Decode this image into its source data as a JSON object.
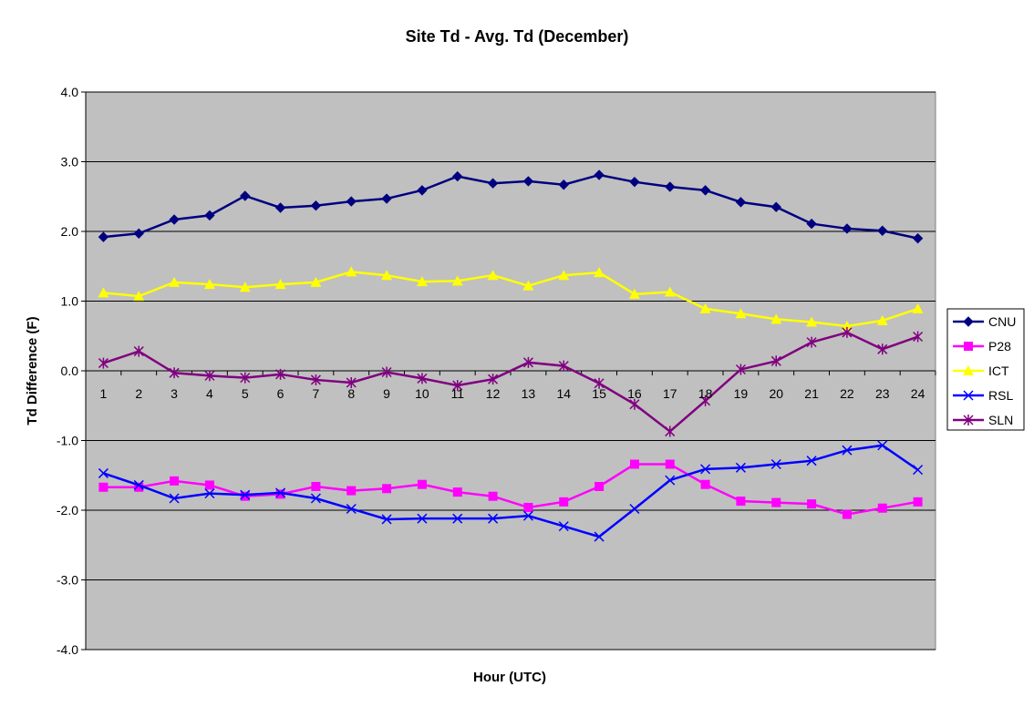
{
  "chart_data": {
    "type": "line",
    "title": "Site Td - Avg. Td (December)",
    "xlabel": "Hour (UTC)",
    "ylabel": "Td Difference (F)",
    "ylim": [
      -4.0,
      4.0
    ],
    "y_ticks": [
      "4.0",
      "3.0",
      "2.0",
      "1.0",
      "0.0",
      "-1.0",
      "-2.0",
      "-3.0",
      "-4.0"
    ],
    "y_tick_values": [
      4,
      3,
      2,
      1,
      0,
      -1,
      -2,
      -3,
      -4
    ],
    "categories": [
      "1",
      "2",
      "3",
      "4",
      "5",
      "6",
      "7",
      "8",
      "9",
      "10",
      "11",
      "12",
      "13",
      "14",
      "15",
      "16",
      "17",
      "18",
      "19",
      "20",
      "21",
      "22",
      "23",
      "24"
    ],
    "grid": true,
    "plot_background": "#c0c0c0",
    "legend_position": "right",
    "series": [
      {
        "name": "CNU",
        "color": "#000080",
        "marker": "diamond",
        "values": [
          1.92,
          1.97,
          2.17,
          2.23,
          2.51,
          2.34,
          2.37,
          2.43,
          2.47,
          2.59,
          2.79,
          2.69,
          2.72,
          2.67,
          2.81,
          2.71,
          2.64,
          2.59,
          2.42,
          2.35,
          2.11,
          2.04,
          2.01,
          1.9
        ]
      },
      {
        "name": "P28",
        "color": "#ff00ff",
        "marker": "square",
        "values": [
          -1.67,
          -1.67,
          -1.58,
          -1.64,
          -1.8,
          -1.77,
          -1.66,
          -1.72,
          -1.69,
          -1.63,
          -1.74,
          -1.8,
          -1.96,
          -1.88,
          -1.66,
          -1.34,
          -1.34,
          -1.63,
          -1.87,
          -1.89,
          -1.91,
          -2.06,
          -1.97,
          -1.88
        ]
      },
      {
        "name": "ICT",
        "color": "#ffff00",
        "marker": "triangle",
        "values": [
          1.12,
          1.07,
          1.27,
          1.24,
          1.2,
          1.24,
          1.27,
          1.42,
          1.37,
          1.28,
          1.29,
          1.37,
          1.22,
          1.37,
          1.41,
          1.1,
          1.13,
          0.89,
          0.82,
          0.74,
          0.7,
          0.64,
          0.72,
          0.89
        ]
      },
      {
        "name": "RSL",
        "color": "#0000ff",
        "marker": "x",
        "values": [
          -1.47,
          -1.64,
          -1.83,
          -1.76,
          -1.78,
          -1.75,
          -1.83,
          -1.98,
          -2.13,
          -2.12,
          -2.12,
          -2.12,
          -2.08,
          -2.23,
          -2.38,
          -1.98,
          -1.57,
          -1.41,
          -1.39,
          -1.34,
          -1.29,
          -1.14,
          -1.07,
          -1.42
        ]
      },
      {
        "name": "SLN",
        "color": "#800080",
        "marker": "star",
        "values": [
          0.11,
          0.28,
          -0.03,
          -0.07,
          -0.1,
          -0.05,
          -0.13,
          -0.17,
          -0.02,
          -0.11,
          -0.21,
          -0.12,
          0.12,
          0.07,
          -0.18,
          -0.48,
          -0.87,
          -0.43,
          0.02,
          0.14,
          0.41,
          0.55,
          0.31,
          0.49
        ]
      }
    ]
  }
}
